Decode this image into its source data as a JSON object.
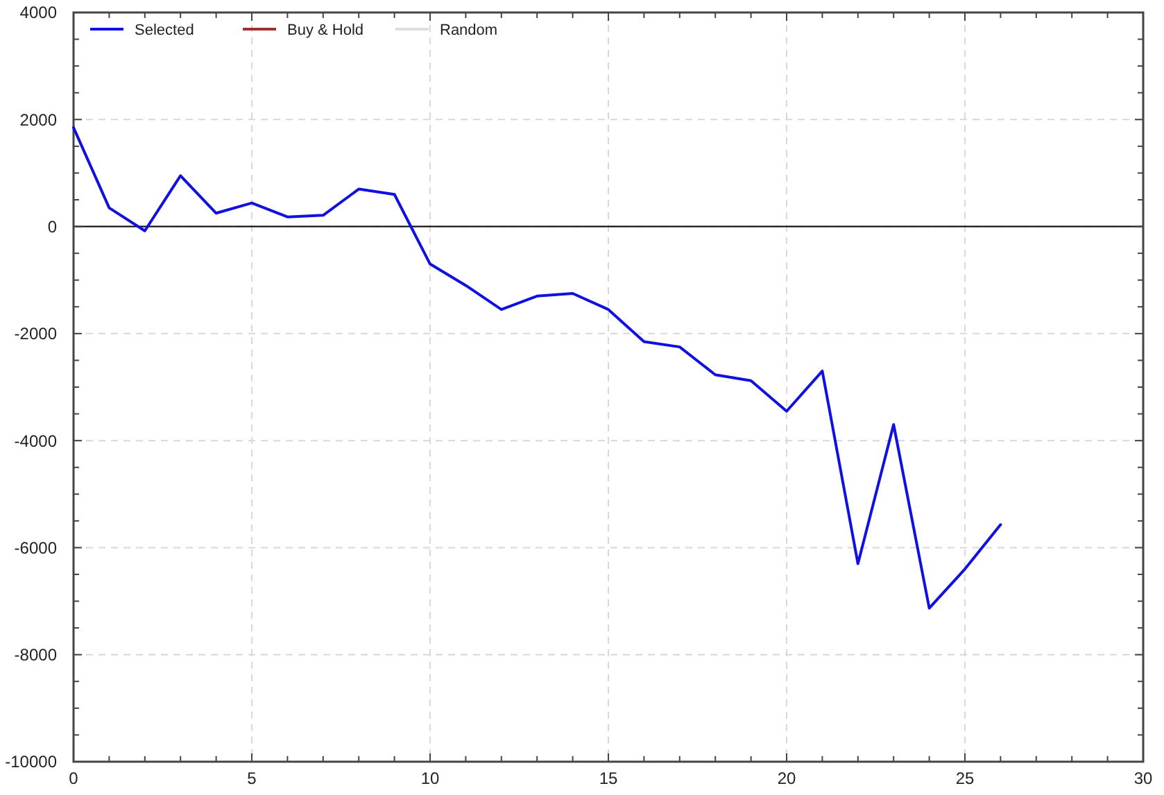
{
  "chart_data": {
    "type": "line",
    "x": [
      0,
      1,
      2,
      3,
      4,
      5,
      6,
      7,
      8,
      9,
      10,
      11,
      12,
      13,
      14,
      15,
      16,
      17,
      18,
      19,
      20,
      21,
      22,
      23,
      24,
      25,
      26
    ],
    "series": [
      {
        "name": "Selected",
        "color": "#1010e0",
        "values": [
          1850,
          350,
          -80,
          950,
          250,
          440,
          180,
          210,
          700,
          600,
          -700,
          -1100,
          -1550,
          -1300,
          -1250,
          -1550,
          -2150,
          -2250,
          -2770,
          -2880,
          -3450,
          -2700,
          -6300,
          -3700,
          -7130,
          -6400,
          -5570
        ]
      },
      {
        "name": "Buy & Hold",
        "color": "#a03030",
        "values": [
          null,
          null,
          null,
          null,
          null,
          null,
          null,
          null,
          null,
          null,
          null,
          null,
          null,
          null,
          null,
          null,
          null,
          null,
          null,
          null,
          null,
          null,
          null,
          null,
          null,
          null,
          null
        ]
      },
      {
        "name": "Random",
        "color": "#dddddd",
        "values": [
          null,
          null,
          null,
          null,
          null,
          null,
          null,
          null,
          null,
          null,
          null,
          null,
          null,
          null,
          null,
          null,
          null,
          null,
          null,
          null,
          null,
          null,
          null,
          null,
          null,
          null,
          null
        ]
      }
    ],
    "xlim": [
      0,
      30
    ],
    "xticks": [
      0,
      {
        "value": 1,
        "label": null
      },
      {
        "value": 2,
        "label": null
      },
      {
        "value": 3,
        "label": null
      },
      {
        "value": 4,
        "label": null
      },
      5,
      {
        "value": 6,
        "label": null
      },
      {
        "value": 7,
        "label": null
      },
      {
        "value": 8,
        "label": null
      },
      {
        "value": 9,
        "label": null
      },
      10,
      {
        "value": 11,
        "label": null
      },
      {
        "value": 12,
        "label": null
      },
      {
        "value": 13,
        "label": null
      },
      {
        "value": 14,
        "label": null
      },
      15,
      {
        "value": 16,
        "label": null
      },
      {
        "value": 17,
        "label": null
      },
      {
        "value": 18,
        "label": null
      },
      {
        "value": 19,
        "label": null
      },
      20,
      {
        "value": 21,
        "label": null
      },
      {
        "value": 22,
        "label": null
      },
      {
        "value": 23,
        "label": null
      },
      {
        "value": 24,
        "label": null
      },
      25,
      {
        "value": 26,
        "label": null
      },
      {
        "value": 27,
        "label": null
      },
      {
        "value": 28,
        "label": null
      },
      {
        "value": 29,
        "label": null
      },
      30
    ],
    "ylim": [
      -10000,
      4000
    ],
    "yticks": [
      -10000,
      {
        "value": -9500,
        "label": null
      },
      {
        "value": -9000,
        "label": null
      },
      {
        "value": -8500,
        "label": null
      },
      -8000,
      {
        "value": -7500,
        "label": null
      },
      {
        "value": -7000,
        "label": null
      },
      {
        "value": -6500,
        "label": null
      },
      -6000,
      {
        "value": -5500,
        "label": null
      },
      {
        "value": -5000,
        "label": null
      },
      {
        "value": -4500,
        "label": null
      },
      -4000,
      {
        "value": -3500,
        "label": null
      },
      {
        "value": -3000,
        "label": null
      },
      {
        "value": -2500,
        "label": null
      },
      -2000,
      {
        "value": -1500,
        "label": null
      },
      {
        "value": -1000,
        "label": null
      },
      {
        "value": -500,
        "label": null
      },
      0,
      {
        "value": 500,
        "label": null
      },
      {
        "value": 1000,
        "label": null
      },
      {
        "value": 1500,
        "label": null
      },
      2000,
      {
        "value": 2500,
        "label": null
      },
      {
        "value": 3000,
        "label": null
      },
      {
        "value": 3500,
        "label": null
      },
      4000
    ],
    "ref_lines": [
      {
        "axis": "y",
        "value": 0,
        "color": "#000000"
      }
    ],
    "grid": true,
    "legend": "top left",
    "marker": "none",
    "line_style": "solid"
  }
}
